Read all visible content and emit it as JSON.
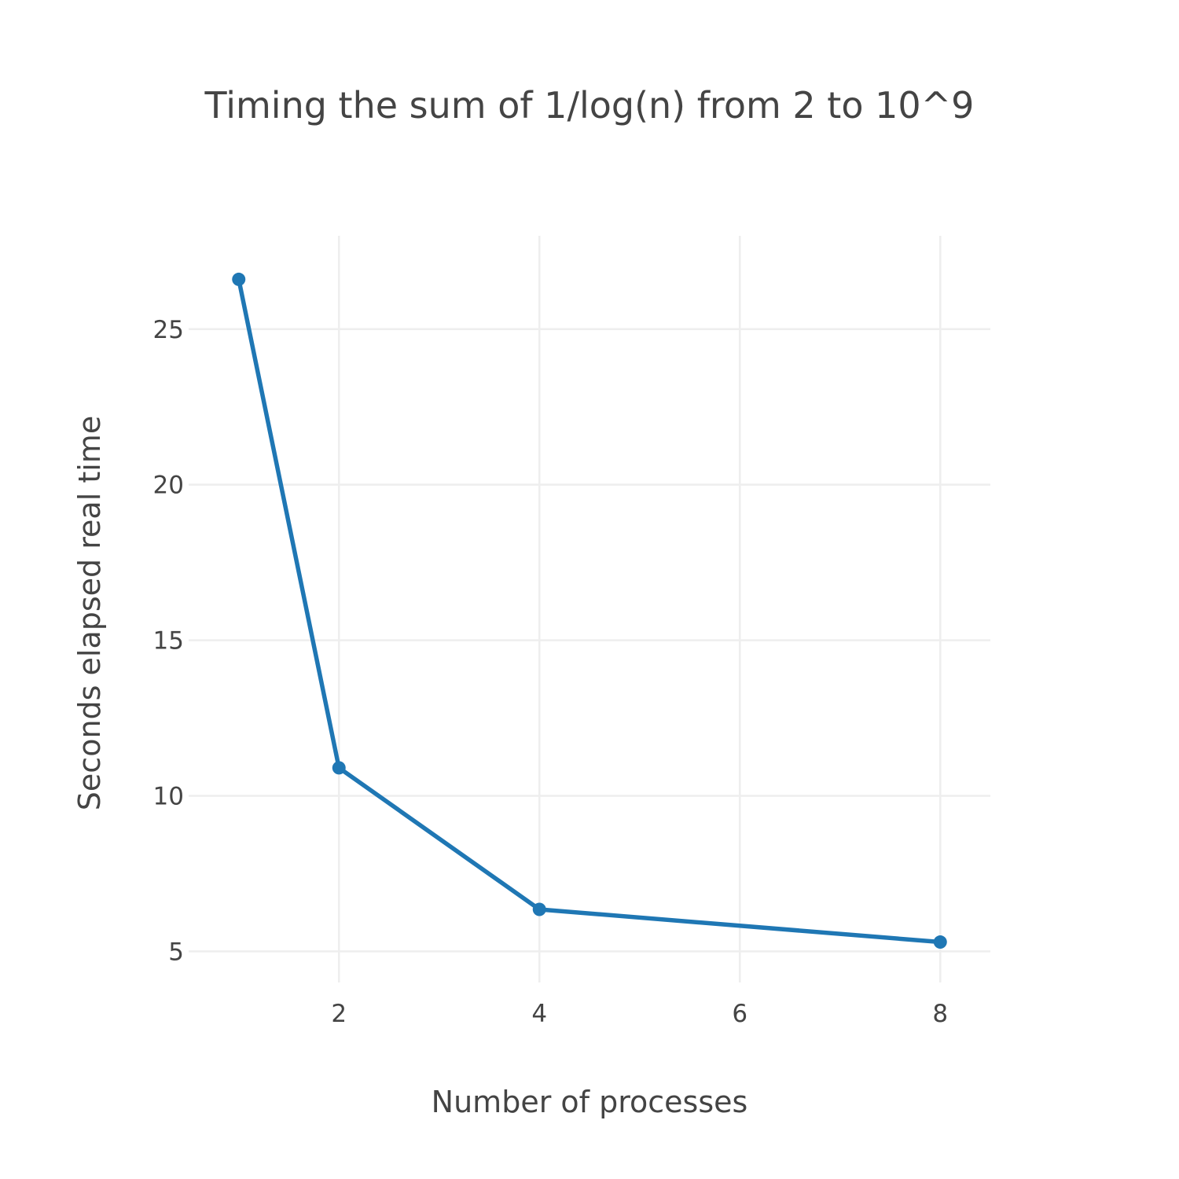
{
  "chart_data": {
    "type": "line",
    "title": "Timing the sum of 1/log(n) from 2 to 10^9",
    "xlabel": "Number of processes",
    "ylabel": "Seconds elapsed real time",
    "x": [
      1,
      2,
      4,
      8
    ],
    "series": [
      {
        "values": [
          26.6,
          10.9,
          6.35,
          5.3
        ]
      }
    ],
    "xlim": [
      0.5,
      8.5
    ],
    "ylim": [
      4,
      28
    ],
    "x_ticks": [
      2,
      4,
      6,
      8
    ],
    "x_tick_labels": [
      "2",
      "4",
      "6",
      "8"
    ],
    "y_ticks": [
      5,
      10,
      15,
      20,
      25
    ],
    "y_tick_labels": [
      "5",
      "10",
      "15",
      "20",
      "25"
    ],
    "grid": true,
    "legend": "none",
    "colors": {
      "line": "#1f77b4",
      "grid": "#eeeeee",
      "text": "#444444"
    }
  }
}
